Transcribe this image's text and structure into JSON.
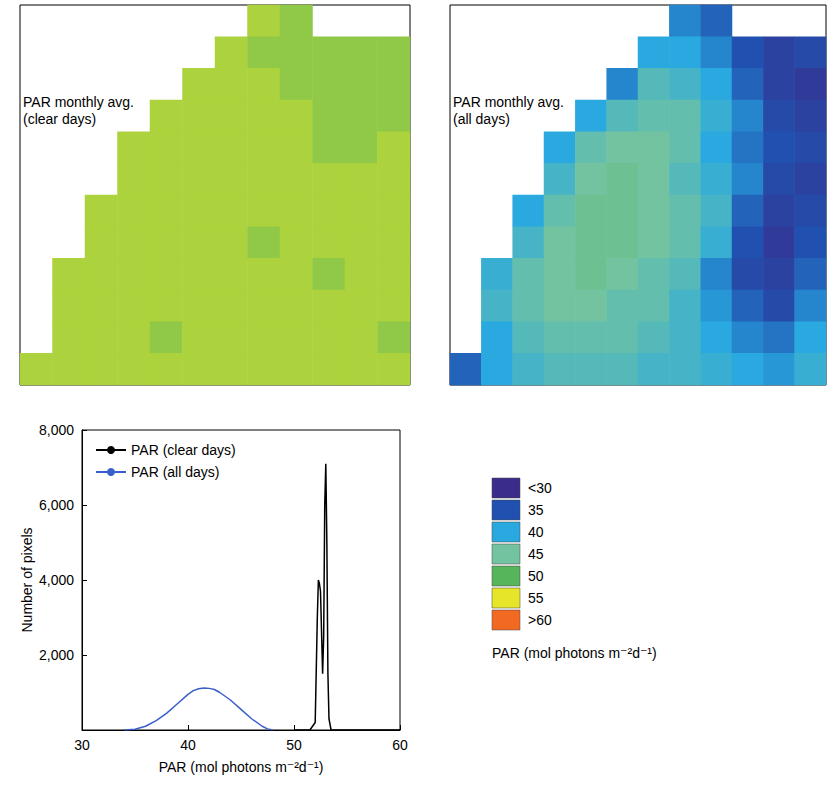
{
  "chart_data": [
    {
      "type": "heatmap",
      "title": "PAR monthly avg. (clear days)",
      "tick_labels": false,
      "cells": [
        [
          null,
          null,
          null,
          null,
          null,
          null,
          null,
          53,
          52,
          null,
          null,
          null
        ],
        [
          null,
          null,
          null,
          null,
          null,
          null,
          53,
          52,
          52,
          52,
          52,
          52
        ],
        [
          null,
          null,
          null,
          null,
          null,
          53,
          53,
          53,
          52,
          52,
          52,
          52
        ],
        [
          null,
          null,
          null,
          null,
          53,
          53,
          53,
          53,
          53,
          52,
          52,
          52
        ],
        [
          null,
          null,
          null,
          53,
          53,
          53,
          53,
          53,
          53,
          52,
          52,
          53
        ],
        [
          null,
          null,
          null,
          53,
          53,
          53,
          53,
          53,
          53,
          53,
          53,
          53
        ],
        [
          null,
          null,
          53,
          53,
          53,
          53,
          53,
          53,
          53,
          53,
          53,
          53
        ],
        [
          null,
          null,
          53,
          53,
          53,
          53,
          53,
          52,
          53,
          53,
          53,
          53
        ],
        [
          null,
          53,
          53,
          53,
          53,
          53,
          53,
          53,
          53,
          52,
          53,
          53
        ],
        [
          null,
          53,
          53,
          53,
          53,
          53,
          53,
          53,
          53,
          53,
          53,
          53
        ],
        [
          null,
          53,
          53,
          53,
          52,
          53,
          53,
          53,
          53,
          53,
          53,
          52
        ],
        [
          53,
          53,
          53,
          53,
          53,
          53,
          53,
          53,
          53,
          53,
          53,
          53
        ]
      ]
    },
    {
      "type": "heatmap",
      "title": "PAR monthly avg. (all days)",
      "tick_labels": false,
      "cells": [
        [
          null,
          null,
          null,
          null,
          null,
          null,
          null,
          38,
          36,
          null,
          null,
          null
        ],
        [
          null,
          null,
          null,
          null,
          null,
          null,
          40,
          40,
          38,
          35,
          33,
          34
        ],
        [
          null,
          null,
          null,
          null,
          null,
          38,
          43,
          42,
          40,
          36,
          33,
          32
        ],
        [
          null,
          null,
          null,
          null,
          40,
          43,
          44,
          44,
          41,
          38,
          34,
          33
        ],
        [
          null,
          null,
          null,
          40,
          44,
          45,
          45,
          44,
          40,
          37,
          35,
          34
        ],
        [
          null,
          null,
          null,
          42,
          45,
          46,
          45,
          43,
          41,
          38,
          34,
          33
        ],
        [
          null,
          null,
          40,
          44,
          46,
          46,
          45,
          44,
          42,
          36,
          33,
          34
        ],
        [
          null,
          null,
          42,
          45,
          46,
          46,
          45,
          44,
          41,
          35,
          32,
          35
        ],
        [
          null,
          41,
          44,
          45,
          46,
          45,
          44,
          43,
          38,
          34,
          33,
          36
        ],
        [
          null,
          42,
          44,
          45,
          45,
          44,
          44,
          42,
          39,
          36,
          34,
          38
        ],
        [
          null,
          40,
          43,
          44,
          44,
          44,
          43,
          42,
          40,
          38,
          37,
          40
        ],
        [
          36,
          40,
          42,
          43,
          43,
          43,
          42,
          42,
          41,
          40,
          39,
          41
        ]
      ]
    },
    {
      "type": "line",
      "x_label": "PAR (mol photons m⁻²d⁻¹)",
      "y_label": "Number of pixels",
      "xlim": [
        30,
        60
      ],
      "xticks": [
        30,
        40,
        50,
        60
      ],
      "ylim": [
        0,
        8000
      ],
      "yticks": [
        2000,
        4000,
        6000,
        8000
      ],
      "grid": false,
      "legend": "upper left",
      "series": [
        {
          "name": "PAR (clear days)",
          "color": "#000000",
          "x": [
            50,
            51.5,
            52.0,
            52.2,
            52.3,
            52.4,
            52.5,
            52.6,
            52.7,
            52.8,
            52.9,
            53.0,
            53.1,
            53.2,
            53.3,
            53.5,
            60
          ],
          "values": [
            0,
            0,
            200,
            3000,
            4000,
            3900,
            3700,
            2600,
            1500,
            2500,
            6000,
            7100,
            5000,
            1500,
            300,
            0,
            0
          ]
        },
        {
          "name": "PAR (all days)",
          "color": "#3a5fcd",
          "x": [
            34,
            35,
            36,
            37,
            38,
            39,
            40,
            40.5,
            41,
            41.5,
            42,
            42.5,
            43,
            44,
            45,
            46,
            47,
            47.5,
            48
          ],
          "values": [
            0,
            20,
            100,
            250,
            450,
            700,
            950,
            1050,
            1100,
            1120,
            1110,
            1080,
            1000,
            800,
            550,
            300,
            100,
            30,
            0
          ]
        }
      ]
    }
  ],
  "colorbar": {
    "title": "PAR (mol photons m⁻²d⁻¹)",
    "levels": [
      {
        "value": 30,
        "label": "<30",
        "color": "#3a2c8a"
      },
      {
        "value": 35,
        "label": "35",
        "color": "#2151b0"
      },
      {
        "value": 40,
        "label": "40",
        "color": "#29a9e0"
      },
      {
        "value": 45,
        "label": "45",
        "color": "#73c3a0"
      },
      {
        "value": 50,
        "label": "50",
        "color": "#56b55a"
      },
      {
        "value": 55,
        "label": "55",
        "color": "#e6e52a"
      },
      {
        "value": 60,
        "label": ">60",
        "color": "#f26a21"
      }
    ]
  }
}
